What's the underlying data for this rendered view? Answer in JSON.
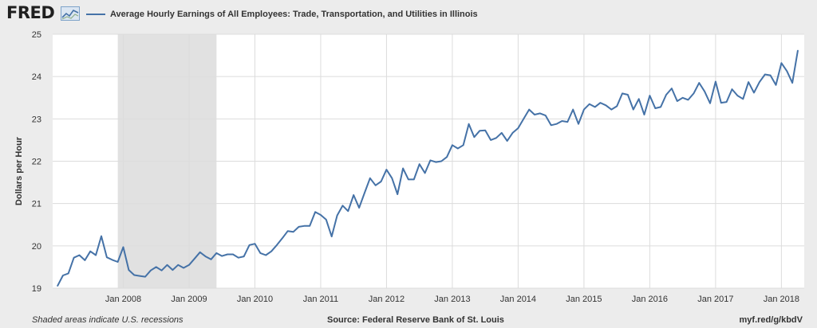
{
  "header": {
    "logo_text": "FRED",
    "logo_icon": "chart-line-icon",
    "series_title": "Average Hourly Earnings of All Employees: Trade, Transportation, and Utilities in Illinois"
  },
  "footer": {
    "note": "Shaded areas indicate U.S. recessions",
    "source": "Source: Federal Reserve Bank of St. Louis",
    "link": "myf.red/g/kbdV"
  },
  "colors": {
    "line": "#4572a7",
    "recession": "#e1e1e1",
    "grid": "#dcdcdc",
    "plot_bg": "#ffffff",
    "page_bg": "#ececec"
  },
  "chart_data": {
    "type": "line",
    "title": "Average Hourly Earnings of All Employees: Trade, Transportation, and Utilities in Illinois",
    "xlabel": "",
    "ylabel": "Dollars per Hour",
    "ylim": [
      19,
      25
    ],
    "yticks": [
      "19",
      "20",
      "21",
      "22",
      "23",
      "24",
      "25"
    ],
    "xticks": [
      {
        "date": "2008-01",
        "label": "Jan 2008"
      },
      {
        "date": "2009-01",
        "label": "Jan 2009"
      },
      {
        "date": "2010-01",
        "label": "Jan 2010"
      },
      {
        "date": "2011-01",
        "label": "Jan 2011"
      },
      {
        "date": "2012-01",
        "label": "Jan 2012"
      },
      {
        "date": "2013-01",
        "label": "Jan 2013"
      },
      {
        "date": "2014-01",
        "label": "Jan 2014"
      },
      {
        "date": "2015-01",
        "label": "Jan 2015"
      },
      {
        "date": "2016-01",
        "label": "Jan 2016"
      },
      {
        "date": "2017-01",
        "label": "Jan 2017"
      },
      {
        "date": "2018-01",
        "label": "Jan 2018"
      }
    ],
    "x_range": [
      "2007-01",
      "2018-04"
    ],
    "grid": true,
    "recessions": [
      {
        "start": "2007-12",
        "end": "2009-06"
      }
    ],
    "series": [
      {
        "name": "Average Hourly Earnings of All Employees: Trade, Transportation, and Utilities in Illinois",
        "x": [
          "2007-01",
          "2007-02",
          "2007-03",
          "2007-04",
          "2007-05",
          "2007-06",
          "2007-07",
          "2007-08",
          "2007-09",
          "2007-10",
          "2007-11",
          "2007-12",
          "2008-01",
          "2008-02",
          "2008-03",
          "2008-04",
          "2008-05",
          "2008-06",
          "2008-07",
          "2008-08",
          "2008-09",
          "2008-10",
          "2008-11",
          "2008-12",
          "2009-01",
          "2009-02",
          "2009-03",
          "2009-04",
          "2009-05",
          "2009-06",
          "2009-07",
          "2009-08",
          "2009-09",
          "2009-10",
          "2009-11",
          "2009-12",
          "2010-01",
          "2010-02",
          "2010-03",
          "2010-04",
          "2010-05",
          "2010-06",
          "2010-07",
          "2010-08",
          "2010-09",
          "2010-10",
          "2010-11",
          "2010-12",
          "2011-01",
          "2011-02",
          "2011-03",
          "2011-04",
          "2011-05",
          "2011-06",
          "2011-07",
          "2011-08",
          "2011-09",
          "2011-10",
          "2011-11",
          "2011-12",
          "2012-01",
          "2012-02",
          "2012-03",
          "2012-04",
          "2012-05",
          "2012-06",
          "2012-07",
          "2012-08",
          "2012-09",
          "2012-10",
          "2012-11",
          "2012-12",
          "2013-01",
          "2013-02",
          "2013-03",
          "2013-04",
          "2013-05",
          "2013-06",
          "2013-07",
          "2013-08",
          "2013-09",
          "2013-10",
          "2013-11",
          "2013-12",
          "2014-01",
          "2014-02",
          "2014-03",
          "2014-04",
          "2014-05",
          "2014-06",
          "2014-07",
          "2014-08",
          "2014-09",
          "2014-10",
          "2014-11",
          "2014-12",
          "2015-01",
          "2015-02",
          "2015-03",
          "2015-04",
          "2015-05",
          "2015-06",
          "2015-07",
          "2015-08",
          "2015-09",
          "2015-10",
          "2015-11",
          "2015-12",
          "2016-01",
          "2016-02",
          "2016-03",
          "2016-04",
          "2016-05",
          "2016-06",
          "2016-07",
          "2016-08",
          "2016-09",
          "2016-10",
          "2016-11",
          "2016-12",
          "2017-01",
          "2017-02",
          "2017-03",
          "2017-04",
          "2017-05",
          "2017-06",
          "2017-07",
          "2017-08",
          "2017-09",
          "2017-10",
          "2017-11",
          "2017-12",
          "2018-01",
          "2018-02",
          "2018-03",
          "2018-04"
        ],
        "values": [
          19.05,
          19.3,
          19.35,
          19.72,
          19.78,
          19.66,
          19.87,
          19.78,
          20.23,
          19.73,
          19.67,
          19.62,
          19.97,
          19.43,
          19.31,
          19.29,
          19.27,
          19.42,
          19.5,
          19.42,
          19.55,
          19.43,
          19.55,
          19.48,
          19.55,
          19.7,
          19.85,
          19.75,
          19.68,
          19.83,
          19.76,
          19.8,
          19.8,
          19.72,
          19.75,
          20.02,
          20.05,
          19.83,
          19.78,
          19.87,
          20.02,
          20.18,
          20.35,
          20.33,
          20.45,
          20.47,
          20.47,
          20.8,
          20.73,
          20.62,
          20.22,
          20.72,
          20.95,
          20.82,
          21.2,
          20.9,
          21.25,
          21.6,
          21.43,
          21.52,
          21.8,
          21.6,
          21.22,
          21.83,
          21.57,
          21.57,
          21.93,
          21.72,
          22.02,
          21.98,
          22.0,
          22.1,
          22.38,
          22.3,
          22.38,
          22.88,
          22.57,
          22.72,
          22.73,
          22.5,
          22.55,
          22.67,
          22.48,
          22.67,
          22.78,
          23.0,
          23.22,
          23.1,
          23.13,
          23.08,
          22.85,
          22.88,
          22.95,
          22.93,
          23.22,
          22.88,
          23.22,
          23.35,
          23.28,
          23.38,
          23.32,
          23.22,
          23.3,
          23.6,
          23.57,
          23.22,
          23.47,
          23.1,
          23.55,
          23.25,
          23.28,
          23.57,
          23.72,
          23.42,
          23.5,
          23.45,
          23.6,
          23.85,
          23.65,
          23.37,
          23.88,
          23.38,
          23.4,
          23.7,
          23.55,
          23.47,
          23.87,
          23.62,
          23.87,
          24.05,
          24.03,
          23.8,
          24.32,
          24.13,
          23.85,
          24.62
        ]
      }
    ]
  }
}
